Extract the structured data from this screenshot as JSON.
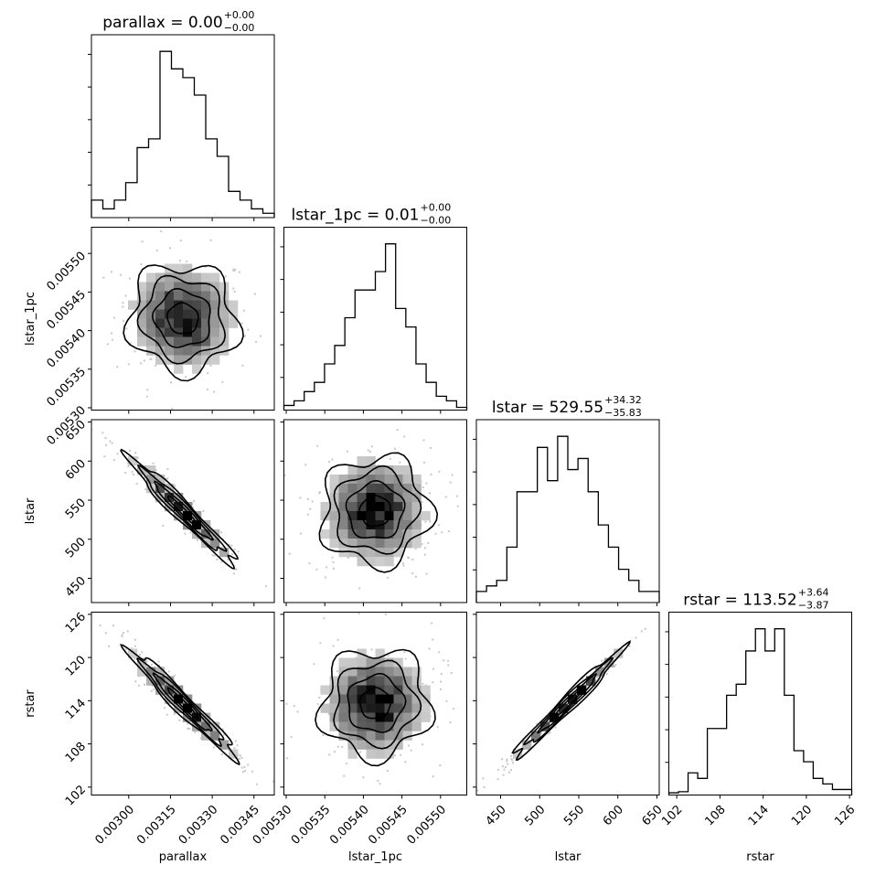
{
  "chart_data": {
    "type": "corner",
    "parameters": [
      "parallax",
      "lstar_1pc",
      "lstar",
      "rstar"
    ],
    "panel_titles": [
      {
        "text": "parallax = 0.00",
        "sup": "+0.00",
        "sub": "−0.00"
      },
      {
        "text": "lstar_1pc = 0.01",
        "sup": "+0.00",
        "sub": "−0.00"
      },
      {
        "text": "lstar = 529.55",
        "sup": "+34.32",
        "sub": "−35.83"
      },
      {
        "text": "rstar = 113.52",
        "sup": "+3.64",
        "sub": "−3.87"
      }
    ],
    "x_axis_labels": [
      "parallax",
      "lstar_1pc",
      "lstar",
      "rstar"
    ],
    "y_axis_labels": [
      "lstar_1pc",
      "lstar",
      "rstar"
    ],
    "ranges": [
      [
        0.002866,
        0.003523
      ],
      [
        0.005297,
        0.005534
      ],
      [
        419.0,
        653.0
      ],
      [
        100.9,
        126.3
      ]
    ],
    "tick_labels": [
      [
        [
          "0.00300",
          0.003
        ],
        [
          "0.00315",
          0.00315
        ],
        [
          "0.00330",
          0.0033
        ],
        [
          "0.00345",
          0.00345
        ]
      ],
      [
        [
          "0.00530",
          0.0053
        ],
        [
          "0.00535",
          0.00535
        ],
        [
          "0.00540",
          0.0054
        ],
        [
          "0.00545",
          0.00545
        ],
        [
          "0.00550",
          0.0055
        ]
      ],
      [
        [
          "450",
          450
        ],
        [
          "500",
          500
        ],
        [
          "550",
          550
        ],
        [
          "600",
          600
        ],
        [
          "650",
          650
        ]
      ],
      [
        [
          "102",
          102
        ],
        [
          "108",
          108
        ],
        [
          "114",
          114
        ],
        [
          "120",
          120
        ],
        [
          "126",
          126
        ]
      ]
    ],
    "histograms": [
      [
        2,
        1,
        2,
        4,
        8,
        9,
        19,
        17,
        16,
        14,
        9,
        7,
        3,
        2,
        1,
        0.5
      ],
      [
        0.5,
        1,
        2,
        3,
        5,
        7,
        10,
        13,
        13,
        15,
        18,
        11,
        9,
        5,
        3,
        1.5,
        1,
        0.3
      ],
      [
        1,
        1.5,
        2,
        5,
        10,
        10,
        14,
        11,
        15,
        12,
        13,
        10,
        7,
        5,
        3,
        2,
        1,
        1
      ],
      [
        0.2,
        0.3,
        2,
        1.5,
        6,
        6,
        9,
        10,
        13,
        15,
        13,
        15,
        9,
        4,
        3,
        1.5,
        1,
        0.5,
        0.5
      ]
    ],
    "correlations": {
      "lstar_1pc|parallax": -0.05,
      "lstar|parallax": -0.97,
      "lstar|lstar_1pc": 0.02,
      "rstar|parallax": -0.97,
      "rstar|lstar_1pc": 0.02,
      "rstar|lstar": 0.99
    },
    "colors": {
      "line": "#000000",
      "density": "#808080",
      "background": "#ffffff"
    }
  }
}
